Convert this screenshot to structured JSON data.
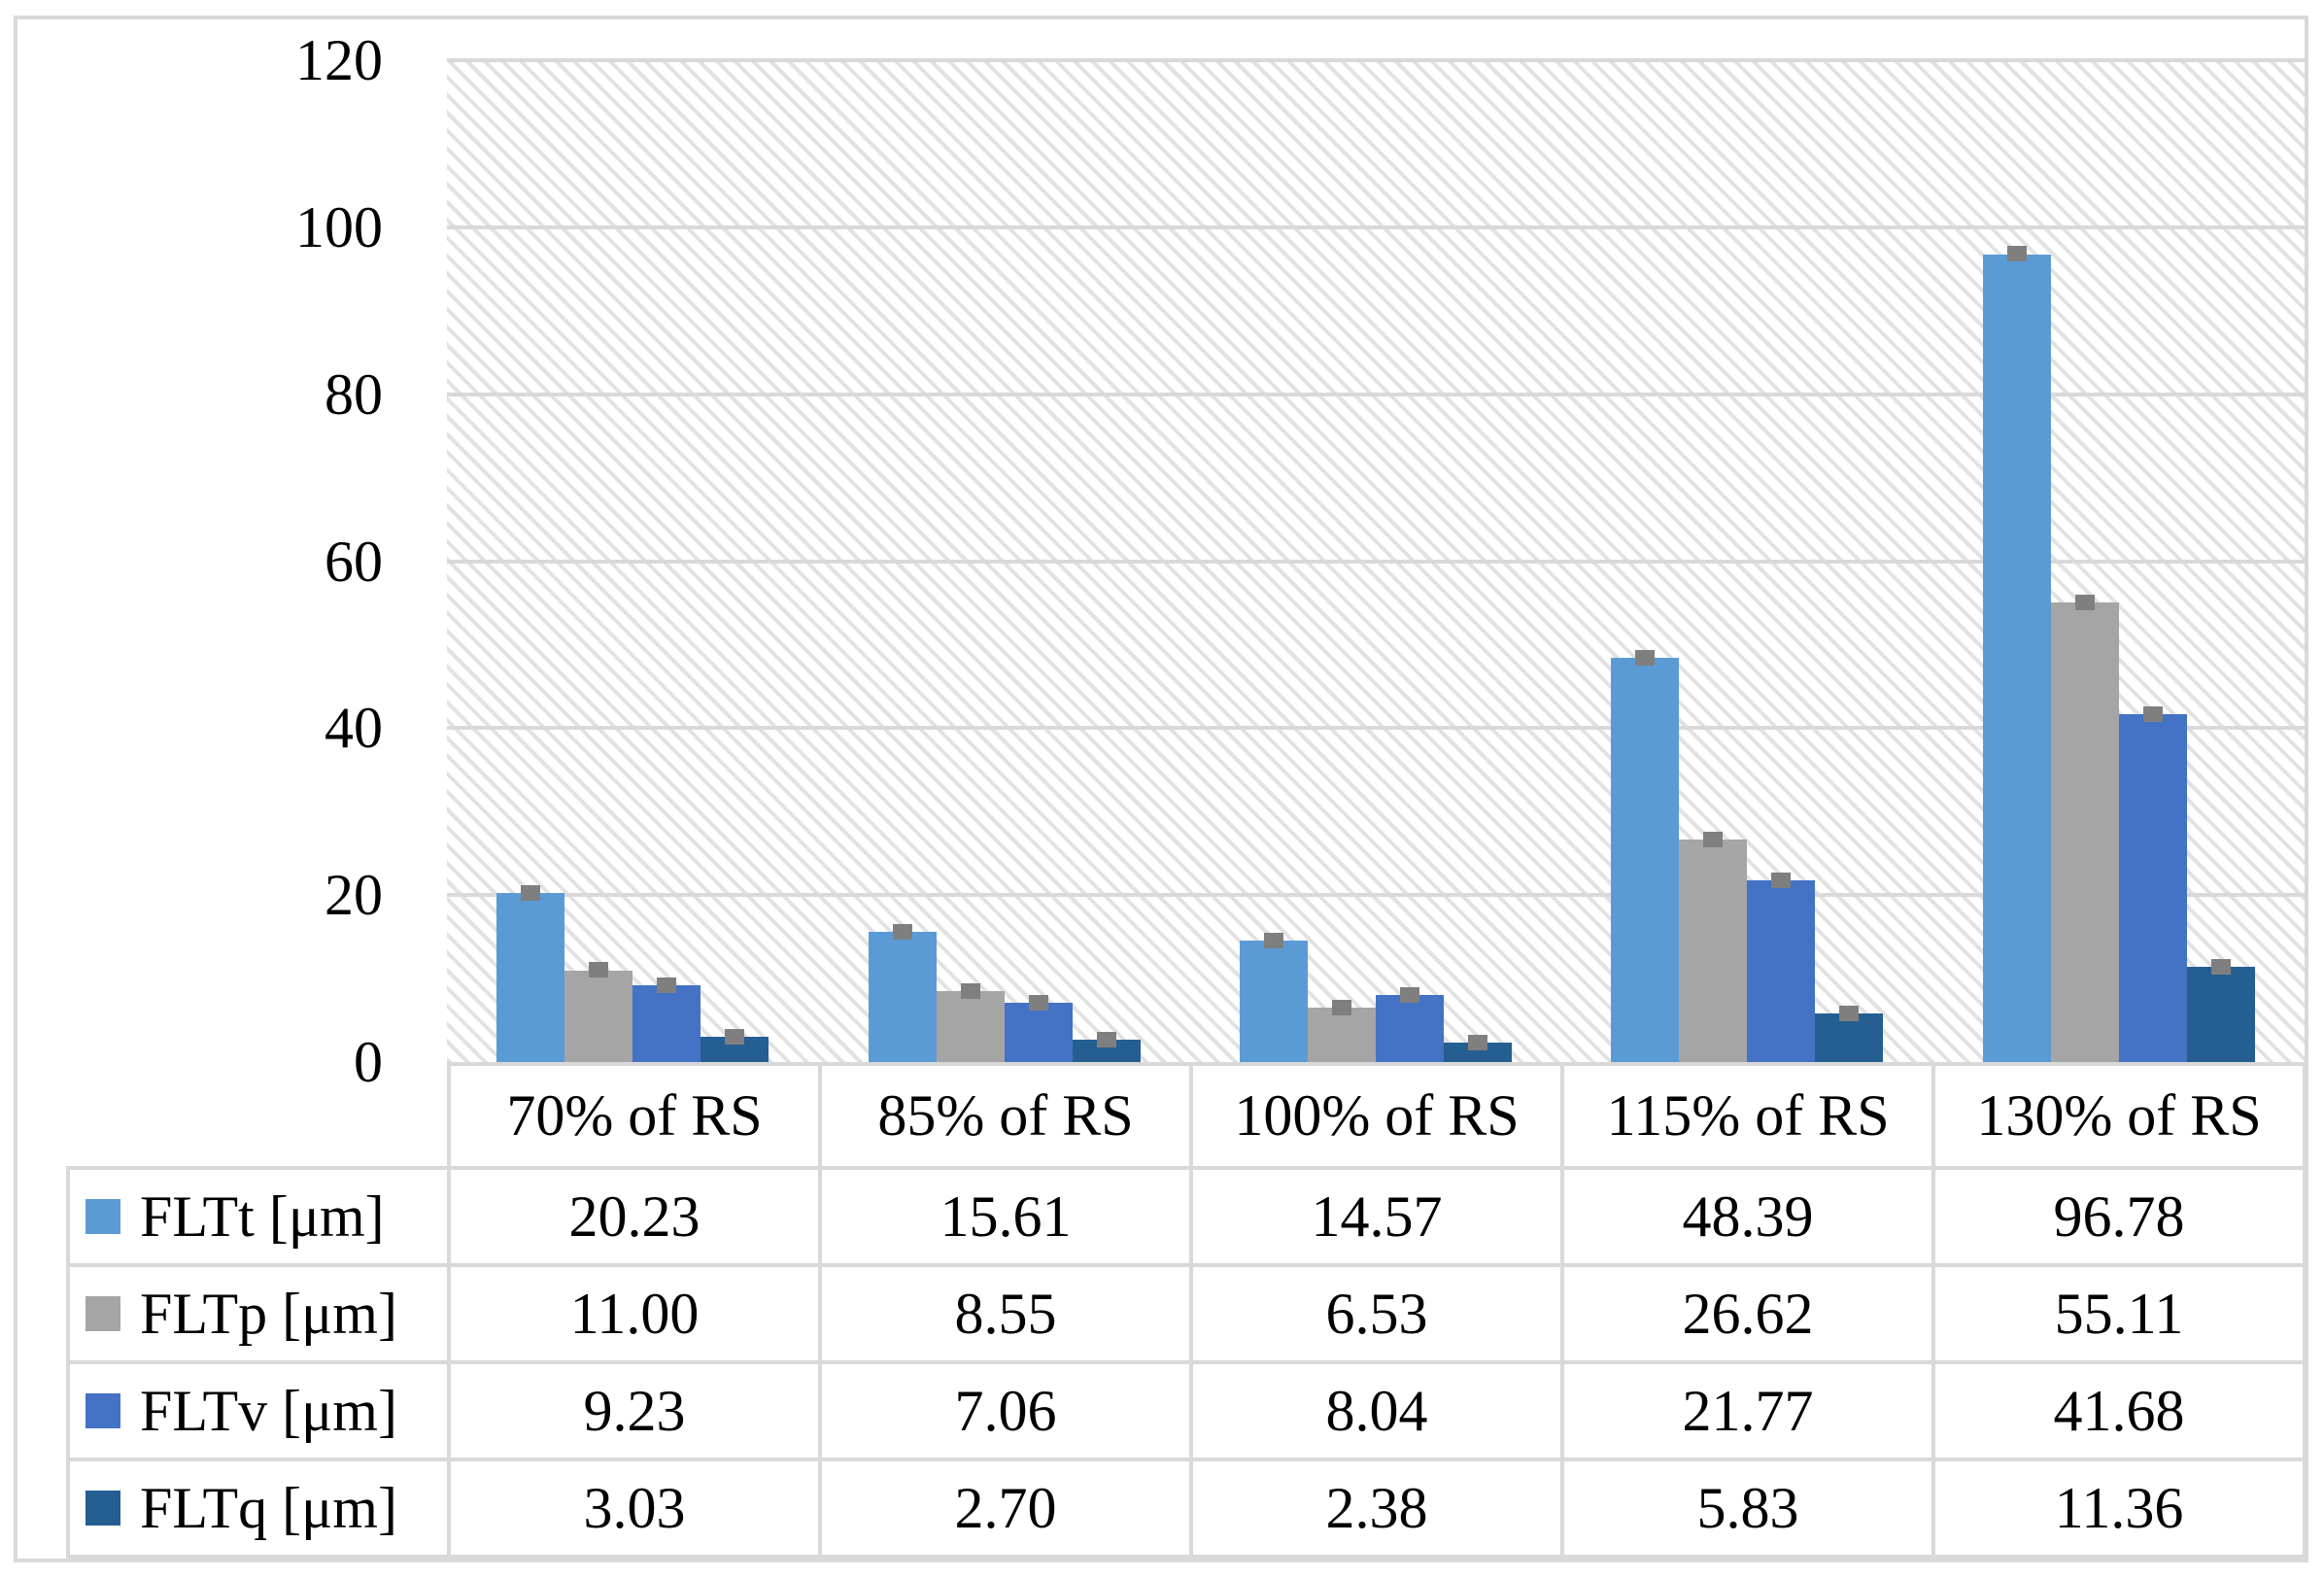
{
  "figure": {
    "background": "#FFFFFF",
    "border_color": "#D9D9D9"
  },
  "chart_data": {
    "type": "bar",
    "title": "",
    "xlabel": "",
    "ylabel": "",
    "categories": [
      "70% of RS",
      "85% of RS",
      "100% of RS",
      "115% of RS",
      "130% of RS"
    ],
    "series": [
      {
        "name": "FLTt [μm]",
        "color": "#5B9BD5",
        "values": [
          20.23,
          15.61,
          14.57,
          48.39,
          96.78
        ]
      },
      {
        "name": "FLTp [μm]",
        "color": "#A5A5A5",
        "values": [
          11.0,
          8.55,
          6.53,
          26.62,
          55.11
        ]
      },
      {
        "name": "FLTv [μm]",
        "color": "#4472C4",
        "values": [
          9.23,
          7.06,
          8.04,
          21.77,
          41.68
        ]
      },
      {
        "name": "FLTq [μm]",
        "color": "#255E90",
        "values": [
          3.03,
          2.7,
          2.38,
          5.83,
          11.36
        ]
      }
    ],
    "ylim": [
      0,
      120
    ],
    "yticks": [
      0,
      20,
      40,
      60,
      80,
      100,
      120
    ],
    "grid": true,
    "error_bars": true,
    "plot_background": "light-diagonal-hatch",
    "legend_position": "data-table-left-column",
    "value_format_decimals": 2
  },
  "colors": {
    "gridline": "#D9D9D9",
    "table_border": "#D9D9D9",
    "error_bar": "#7F7F7F",
    "hatch": "#E2E2E2",
    "text": "#000000"
  }
}
